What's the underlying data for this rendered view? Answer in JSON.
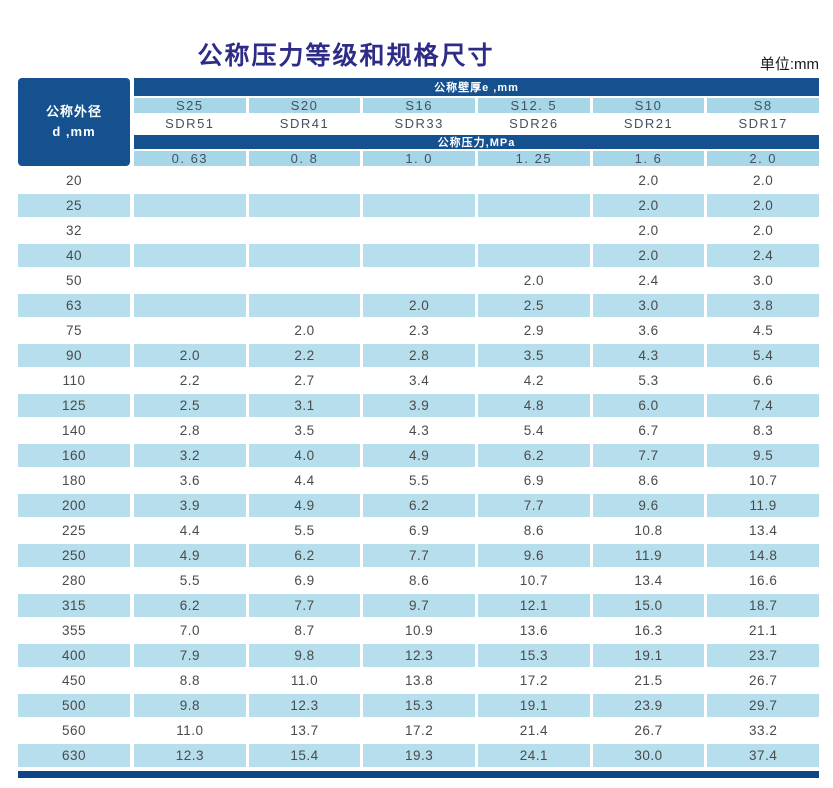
{
  "page": {
    "title": "公称压力等级和规格尺寸",
    "unit_label": "单位:mm"
  },
  "colors": {
    "dark_blue": "#15508F",
    "header_light_blue": "#A7D6E8",
    "stripe_light_blue": "#B6DEEC",
    "bottom_bar_blue": "#0D4585",
    "title_color": "#2E2C87",
    "body_text": "#4A4A4A"
  },
  "table": {
    "corner_line1": "公称外径",
    "corner_line2": "d ,mm",
    "wall_thickness_banner": "公称壁厚e ,mm",
    "pressure_banner": "公称压力,MPa",
    "series_labels": [
      "S25",
      "S20",
      "S16",
      "S12. 5",
      "S10",
      "S8"
    ],
    "sdr_labels": [
      "SDR51",
      "SDR41",
      "SDR33",
      "SDR26",
      "SDR21",
      "SDR17"
    ],
    "pressure_values": [
      "0. 63",
      "0. 8",
      "1. 0",
      "1. 25",
      "1. 6",
      "2. 0"
    ],
    "rows": [
      {
        "d": "20",
        "v": [
          "",
          "",
          "",
          "",
          "2.0",
          "2.0"
        ]
      },
      {
        "d": "25",
        "v": [
          "",
          "",
          "",
          "",
          "2.0",
          "2.0"
        ]
      },
      {
        "d": "32",
        "v": [
          "",
          "",
          "",
          "",
          "2.0",
          "2.0"
        ]
      },
      {
        "d": "40",
        "v": [
          "",
          "",
          "",
          "",
          "2.0",
          "2.4"
        ]
      },
      {
        "d": "50",
        "v": [
          "",
          "",
          "",
          "2.0",
          "2.4",
          "3.0"
        ]
      },
      {
        "d": "63",
        "v": [
          "",
          "",
          "2.0",
          "2.5",
          "3.0",
          "3.8"
        ]
      },
      {
        "d": "75",
        "v": [
          "",
          "2.0",
          "2.3",
          "2.9",
          "3.6",
          "4.5"
        ]
      },
      {
        "d": "90",
        "v": [
          "2.0",
          "2.2",
          "2.8",
          "3.5",
          "4.3",
          "5.4"
        ]
      },
      {
        "d": "110",
        "v": [
          "2.2",
          "2.7",
          "3.4",
          "4.2",
          "5.3",
          "6.6"
        ]
      },
      {
        "d": "125",
        "v": [
          "2.5",
          "3.1",
          "3.9",
          "4.8",
          "6.0",
          "7.4"
        ]
      },
      {
        "d": "140",
        "v": [
          "2.8",
          "3.5",
          "4.3",
          "5.4",
          "6.7",
          "8.3"
        ]
      },
      {
        "d": "160",
        "v": [
          "3.2",
          "4.0",
          "4.9",
          "6.2",
          "7.7",
          "9.5"
        ]
      },
      {
        "d": "180",
        "v": [
          "3.6",
          "4.4",
          "5.5",
          "6.9",
          "8.6",
          "10.7"
        ]
      },
      {
        "d": "200",
        "v": [
          "3.9",
          "4.9",
          "6.2",
          "7.7",
          "9.6",
          "11.9"
        ]
      },
      {
        "d": "225",
        "v": [
          "4.4",
          "5.5",
          "6.9",
          "8.6",
          "10.8",
          "13.4"
        ]
      },
      {
        "d": "250",
        "v": [
          "4.9",
          "6.2",
          "7.7",
          "9.6",
          "11.9",
          "14.8"
        ]
      },
      {
        "d": "280",
        "v": [
          "5.5",
          "6.9",
          "8.6",
          "10.7",
          "13.4",
          "16.6"
        ]
      },
      {
        "d": "315",
        "v": [
          "6.2",
          "7.7",
          "9.7",
          "12.1",
          "15.0",
          "18.7"
        ]
      },
      {
        "d": "355",
        "v": [
          "7.0",
          "8.7",
          "10.9",
          "13.6",
          "16.3",
          "21.1"
        ]
      },
      {
        "d": "400",
        "v": [
          "7.9",
          "9.8",
          "12.3",
          "15.3",
          "19.1",
          "23.7"
        ]
      },
      {
        "d": "450",
        "v": [
          "8.8",
          "11.0",
          "13.8",
          "17.2",
          "21.5",
          "26.7"
        ]
      },
      {
        "d": "500",
        "v": [
          "9.8",
          "12.3",
          "15.3",
          "19.1",
          "23.9",
          "29.7"
        ]
      },
      {
        "d": "560",
        "v": [
          "11.0",
          "13.7",
          "17.2",
          "21.4",
          "26.7",
          "33.2"
        ]
      },
      {
        "d": "630",
        "v": [
          "12.3",
          "15.4",
          "19.3",
          "24.1",
          "30.0",
          "37.4"
        ]
      }
    ]
  }
}
